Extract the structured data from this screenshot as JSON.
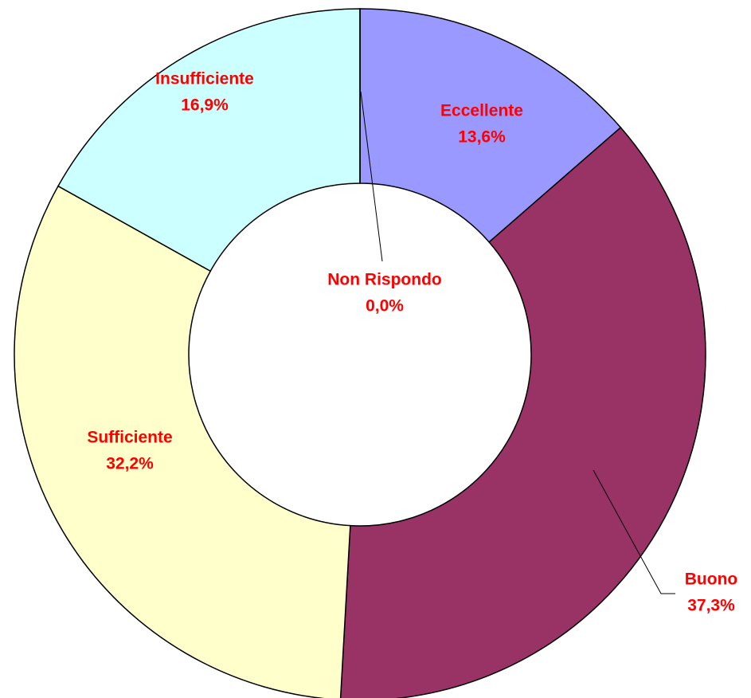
{
  "chart_data": {
    "type": "donut",
    "categories": [
      "Eccellente",
      "Buono",
      "Sufficiente",
      "Insufficiente",
      "Non Rispondo"
    ],
    "values": [
      13.6,
      37.3,
      32.2,
      16.9,
      0.0
    ],
    "value_labels": [
      "13,6%",
      "37,3%",
      "32,2%",
      "16,9%",
      "0,0%"
    ],
    "colors": [
      "#9999ff",
      "#993366",
      "#ffffcc",
      "#ccffff",
      "#ffffff"
    ]
  }
}
